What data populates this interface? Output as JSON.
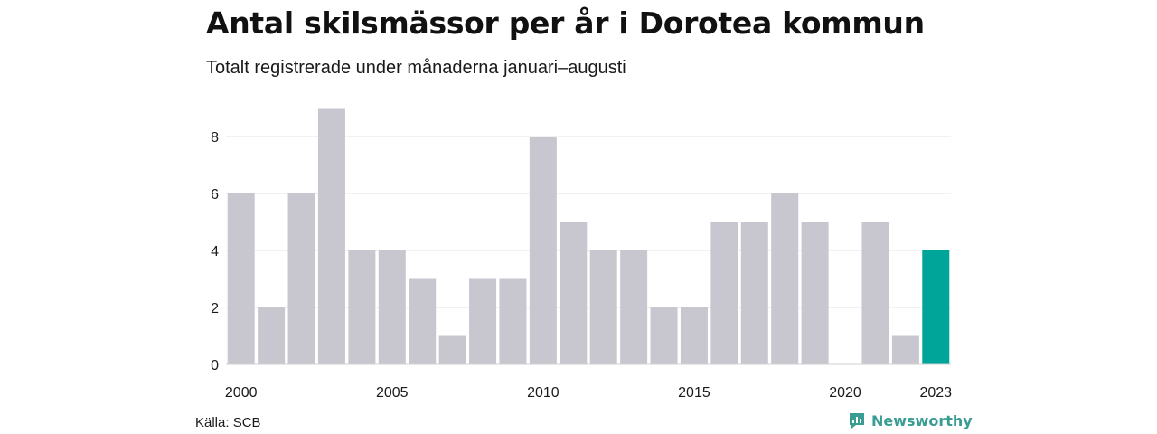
{
  "title": "Antal skilsmässor per år i Dorotea kommun",
  "subtitle": "Totalt registrerade under månaderna januari–augusti",
  "source": "Källa: SCB",
  "brand": {
    "name": "Newsworthy",
    "icon": "newsworthy-chart-icon",
    "color": "#3a9d93"
  },
  "colors": {
    "bar": "#c8c7d0",
    "highlight": "#00a59a",
    "grid": "#e3e3e3"
  },
  "chart_data": {
    "type": "bar",
    "x": [
      2000,
      2001,
      2002,
      2003,
      2004,
      2005,
      2006,
      2007,
      2008,
      2009,
      2010,
      2011,
      2012,
      2013,
      2014,
      2015,
      2016,
      2017,
      2018,
      2019,
      2020,
      2021,
      2022,
      2023
    ],
    "values": [
      6,
      2,
      6,
      9,
      4,
      4,
      3,
      1,
      3,
      3,
      8,
      5,
      4,
      4,
      2,
      2,
      5,
      5,
      6,
      5,
      0,
      5,
      1,
      4
    ],
    "highlight": 2023,
    "ylim": [
      0,
      9
    ],
    "yticks": [
      0,
      2,
      4,
      6,
      8
    ],
    "xticks": [
      2000,
      2005,
      2010,
      2015,
      2020,
      2023
    ],
    "grid": true,
    "legend": "none"
  }
}
